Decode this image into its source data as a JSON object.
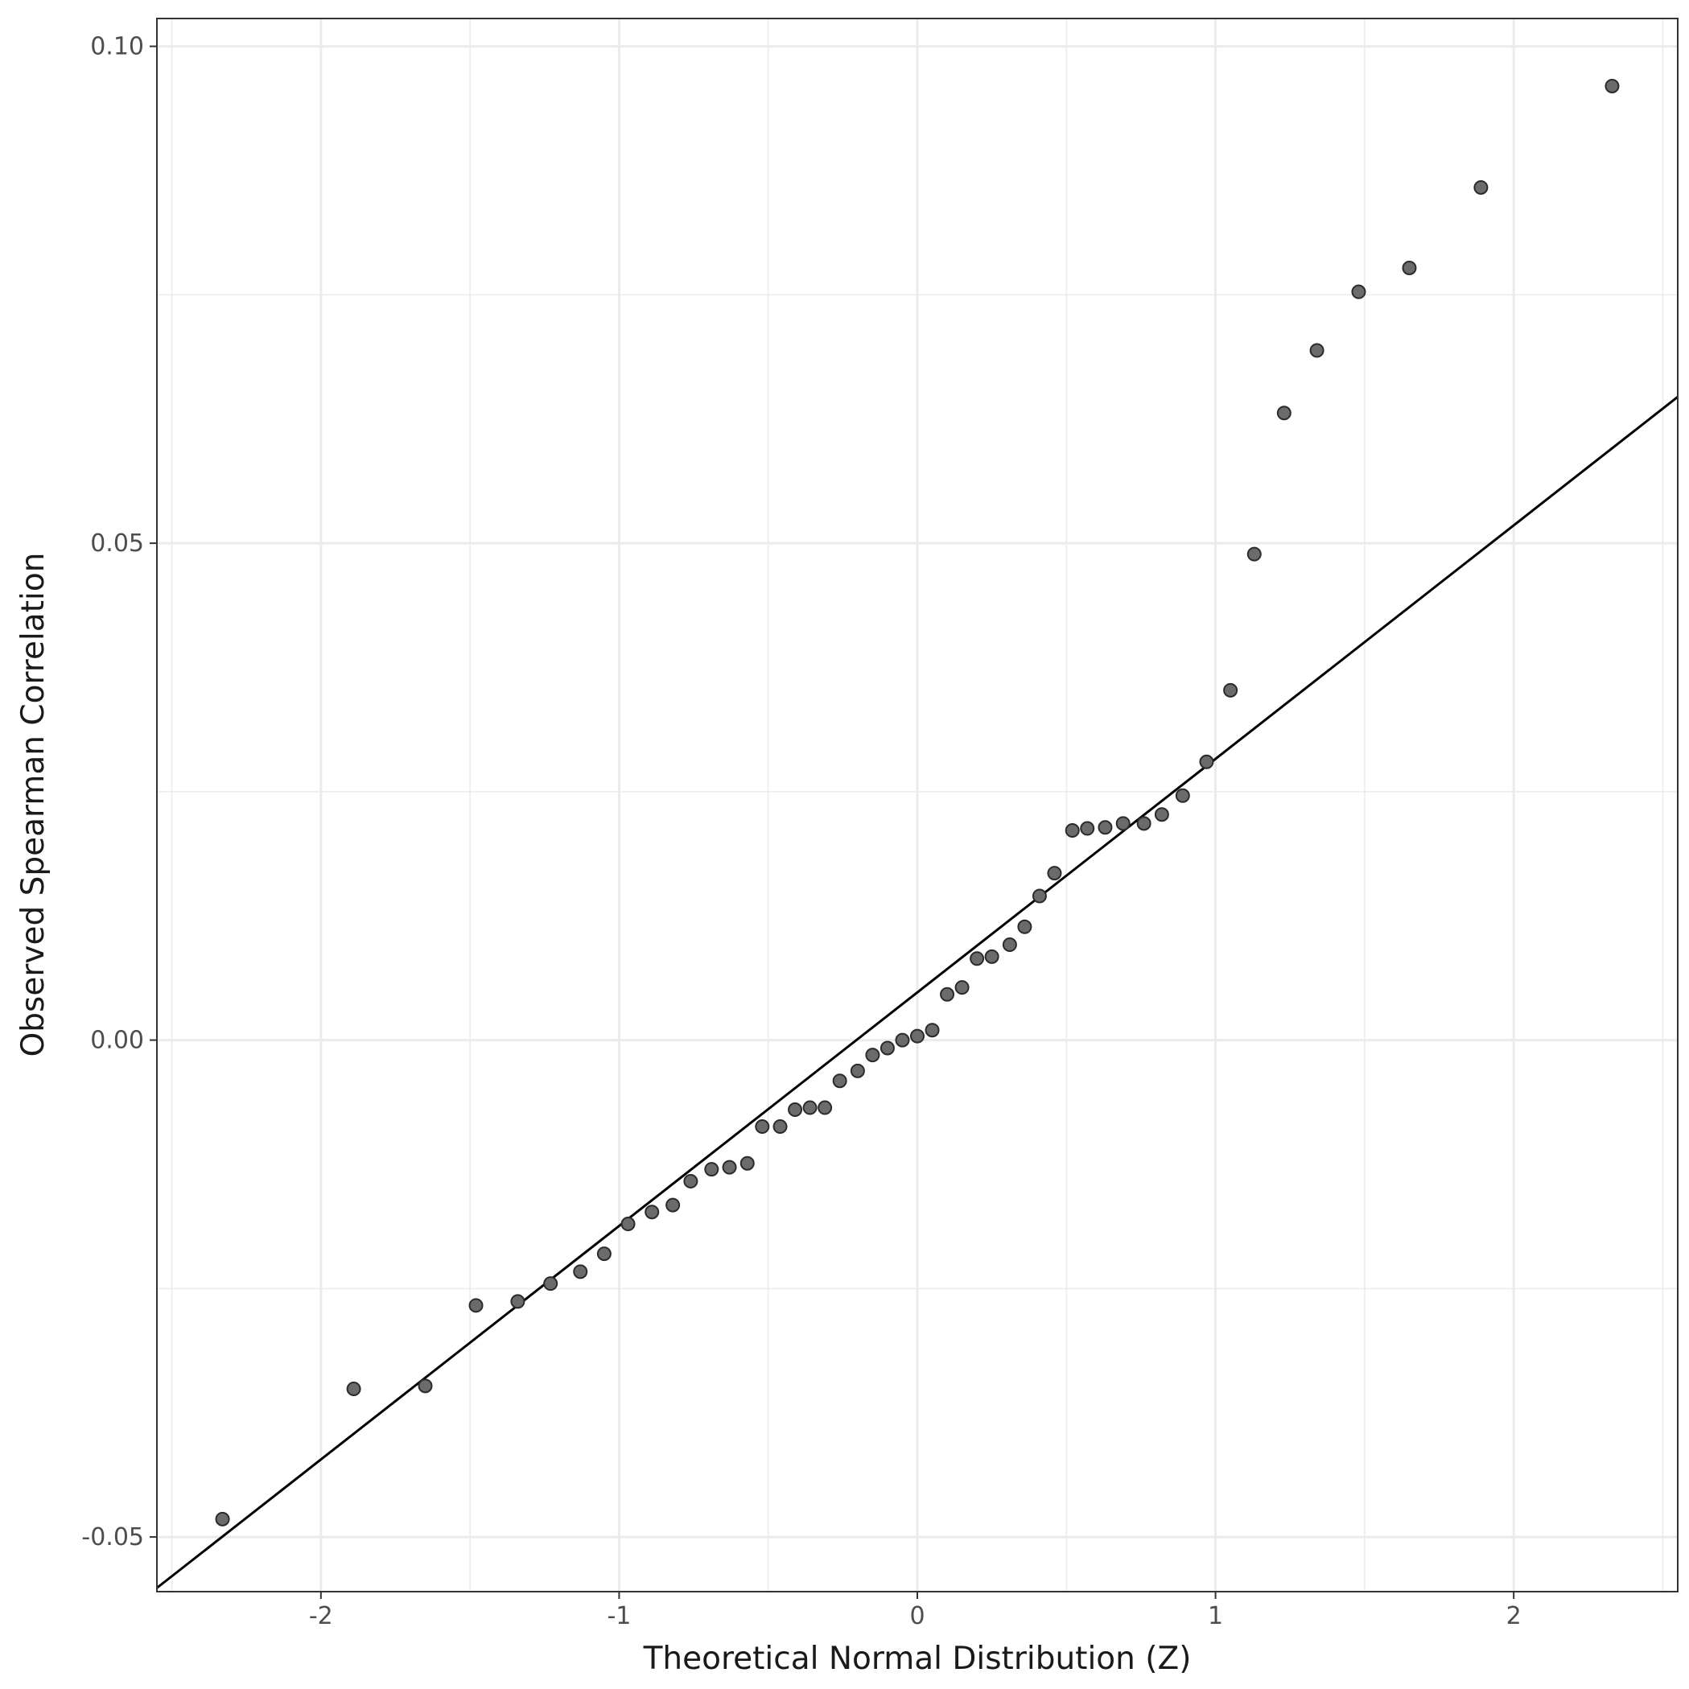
{
  "chart_data": {
    "type": "scatter",
    "xlabel": "Theoretical Normal Distribution (Z)",
    "ylabel": "Observed Spearman Correlation",
    "xlim": [
      -2.55,
      2.55
    ],
    "ylim": [
      -0.0555,
      0.1028
    ],
    "x_ticks": [
      {
        "value": -2,
        "label": "-2"
      },
      {
        "value": -1,
        "label": "-1"
      },
      {
        "value": 0,
        "label": "0"
      },
      {
        "value": 1,
        "label": "1"
      },
      {
        "value": 2,
        "label": "2"
      }
    ],
    "y_ticks": [
      {
        "value": -0.05,
        "label": "-0.05"
      },
      {
        "value": 0.0,
        "label": "0.00"
      },
      {
        "value": 0.05,
        "label": "0.05"
      },
      {
        "value": 0.1,
        "label": "0.10"
      }
    ],
    "grid": true,
    "reference_line": {
      "intercept": 0.0048,
      "slope": 0.0235
    },
    "colors": {
      "points_fill": "#6b6b6b",
      "points_stroke": "#2b2b2b",
      "line": "#000000",
      "grid": "#ebebeb",
      "panel_border": "#333333"
    },
    "points": [
      {
        "x": -2.33,
        "y": -0.0482
      },
      {
        "x": -1.89,
        "y": -0.0351
      },
      {
        "x": -1.65,
        "y": -0.0348
      },
      {
        "x": -1.48,
        "y": -0.0267
      },
      {
        "x": -1.34,
        "y": -0.0263
      },
      {
        "x": -1.23,
        "y": -0.0245
      },
      {
        "x": -1.13,
        "y": -0.0233
      },
      {
        "x": -1.05,
        "y": -0.0215
      },
      {
        "x": -0.97,
        "y": -0.0185
      },
      {
        "x": -0.89,
        "y": -0.0173
      },
      {
        "x": -0.82,
        "y": -0.0166
      },
      {
        "x": -0.76,
        "y": -0.0142
      },
      {
        "x": -0.69,
        "y": -0.013
      },
      {
        "x": -0.63,
        "y": -0.0128
      },
      {
        "x": -0.57,
        "y": -0.0124
      },
      {
        "x": -0.52,
        "y": -0.0087
      },
      {
        "x": -0.46,
        "y": -0.0087
      },
      {
        "x": -0.41,
        "y": -0.007
      },
      {
        "x": -0.36,
        "y": -0.0068
      },
      {
        "x": -0.31,
        "y": -0.0068
      },
      {
        "x": -0.26,
        "y": -0.0041
      },
      {
        "x": -0.2,
        "y": -0.0031
      },
      {
        "x": -0.15,
        "y": -0.0015
      },
      {
        "x": -0.1,
        "y": -0.0008
      },
      {
        "x": -0.05,
        "y": 0.0
      },
      {
        "x": 0.0,
        "y": 0.0004
      },
      {
        "x": 0.05,
        "y": 0.001
      },
      {
        "x": 0.1,
        "y": 0.0046
      },
      {
        "x": 0.15,
        "y": 0.0053
      },
      {
        "x": 0.2,
        "y": 0.0082
      },
      {
        "x": 0.25,
        "y": 0.0084
      },
      {
        "x": 0.31,
        "y": 0.0096
      },
      {
        "x": 0.36,
        "y": 0.0114
      },
      {
        "x": 0.41,
        "y": 0.0145
      },
      {
        "x": 0.46,
        "y": 0.0168
      },
      {
        "x": 0.52,
        "y": 0.0211
      },
      {
        "x": 0.57,
        "y": 0.0213
      },
      {
        "x": 0.63,
        "y": 0.0214
      },
      {
        "x": 0.69,
        "y": 0.0218
      },
      {
        "x": 0.76,
        "y": 0.0218
      },
      {
        "x": 0.82,
        "y": 0.0227
      },
      {
        "x": 0.89,
        "y": 0.0246
      },
      {
        "x": 0.97,
        "y": 0.028
      },
      {
        "x": 1.05,
        "y": 0.0352
      },
      {
        "x": 1.13,
        "y": 0.0489
      },
      {
        "x": 1.23,
        "y": 0.0631
      },
      {
        "x": 1.34,
        "y": 0.0694
      },
      {
        "x": 1.48,
        "y": 0.0753
      },
      {
        "x": 1.65,
        "y": 0.0777
      },
      {
        "x": 1.89,
        "y": 0.0858
      },
      {
        "x": 2.33,
        "y": 0.096
      }
    ]
  }
}
